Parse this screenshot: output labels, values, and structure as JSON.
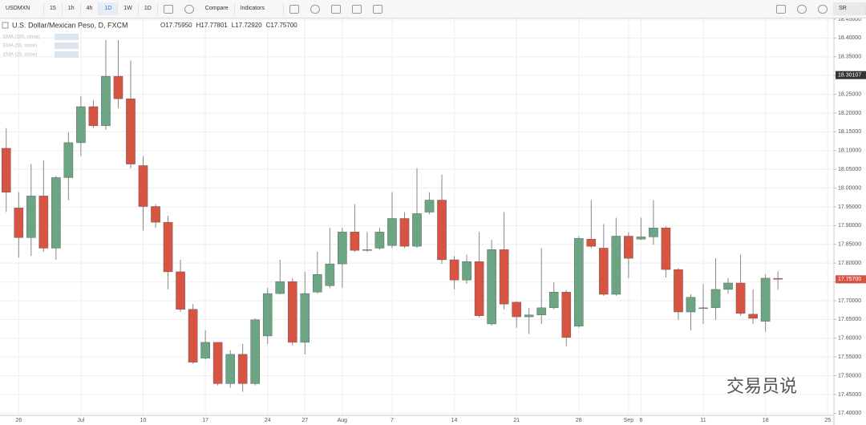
{
  "toolbar": {
    "symbol": "USDMXN",
    "intervals": [
      "15",
      "1h",
      "4h",
      "1D",
      "1W",
      "1D"
    ],
    "active_interval": 3,
    "buttons": [
      "Compare",
      "Indicators"
    ],
    "right": "SR"
  },
  "chart_data": {
    "type": "candlestick",
    "title": "U.S. Dollar/Mexican Peso, D, FXCM",
    "ohlc_legend": [
      "O17.75950",
      "H17.77801",
      "L17.72920",
      "C17.75700"
    ],
    "indicators": [
      "EMA (100, close)",
      "EMA (50, close)",
      "EMA (20, close)"
    ],
    "categories": [
      null,
      "26",
      null,
      null,
      null,
      null,
      "Jul",
      null,
      null,
      null,
      null,
      "10",
      null,
      null,
      null,
      null,
      "17",
      null,
      null,
      null,
      null,
      "24",
      null,
      null,
      "27",
      null,
      null,
      "Aug",
      null,
      null,
      null,
      "7",
      null,
      null,
      null,
      null,
      "14",
      null,
      null,
      null,
      null,
      "21",
      null,
      null,
      null,
      null,
      "28",
      null,
      null,
      null,
      "Sep",
      "6",
      null,
      null,
      null,
      null,
      "11",
      null,
      null,
      null,
      null,
      "18",
      null,
      null,
      null,
      null,
      "25"
    ],
    "open": [
      18.106,
      17.947,
      17.868,
      17.979,
      17.84,
      18.028,
      18.121,
      18.217,
      18.166,
      18.298,
      18.238,
      18.06,
      17.951,
      17.909,
      17.777,
      17.677,
      17.547,
      17.589,
      17.479,
      17.557,
      17.479,
      17.606,
      17.719,
      17.751,
      17.589,
      17.723,
      17.74,
      17.798,
      17.883,
      17.834,
      17.84,
      17.847,
      17.919,
      17.845,
      17.936,
      17.968,
      17.809,
      17.755,
      17.804,
      17.638,
      17.836,
      17.696,
      17.657,
      17.662,
      17.681,
      17.723,
      17.632,
      17.864,
      17.84,
      17.717,
      17.872,
      17.864,
      17.87,
      17.894,
      17.783,
      17.67,
      17.679,
      17.681,
      17.73,
      17.747,
      17.664,
      17.645,
      17.7595,
      null,
      null,
      null,
      null
    ],
    "high": [
      18.16,
      17.989,
      18.064,
      18.074,
      18.032,
      18.149,
      18.245,
      18.234,
      18.394,
      18.394,
      18.34,
      18.085,
      17.957,
      17.926,
      17.809,
      17.691,
      17.621,
      17.589,
      17.568,
      17.585,
      17.653,
      17.734,
      17.809,
      17.76,
      17.777,
      17.83,
      17.894,
      17.894,
      17.957,
      17.883,
      17.894,
      17.989,
      17.936,
      18.053,
      17.989,
      18.036,
      17.819,
      17.823,
      17.883,
      17.862,
      17.936,
      17.698,
      17.681,
      17.84,
      17.749,
      17.728,
      17.872,
      17.968,
      17.904,
      17.921,
      17.883,
      17.921,
      17.968,
      17.898,
      17.787,
      17.717,
      17.745,
      17.813,
      17.76,
      17.823,
      17.73,
      17.77,
      17.77801,
      null,
      null,
      null,
      null
    ],
    "low": [
      17.936,
      17.815,
      17.819,
      17.83,
      17.809,
      17.968,
      18.085,
      18.16,
      18.155,
      18.213,
      18.053,
      17.887,
      17.894,
      17.73,
      17.67,
      17.532,
      17.543,
      17.474,
      17.468,
      17.457,
      17.474,
      17.585,
      17.717,
      17.581,
      17.557,
      17.719,
      17.734,
      17.734,
      17.83,
      17.83,
      17.836,
      17.84,
      17.84,
      17.84,
      17.93,
      17.798,
      17.73,
      17.745,
      17.655,
      17.634,
      17.677,
      17.628,
      17.611,
      17.638,
      17.677,
      17.579,
      17.628,
      17.84,
      17.713,
      17.713,
      17.76,
      17.862,
      17.849,
      17.762,
      17.649,
      17.621,
      17.638,
      17.649,
      17.719,
      17.66,
      17.638,
      17.617,
      17.7292,
      null,
      null,
      null,
      null
    ],
    "close": [
      17.989,
      17.868,
      17.979,
      17.84,
      18.028,
      18.121,
      18.217,
      18.166,
      18.298,
      18.238,
      18.064,
      17.951,
      17.909,
      17.777,
      17.677,
      17.536,
      17.589,
      17.479,
      17.557,
      17.479,
      17.649,
      17.719,
      17.751,
      17.589,
      17.719,
      17.77,
      17.798,
      17.883,
      17.834,
      17.836,
      17.883,
      17.919,
      17.845,
      17.932,
      17.968,
      17.809,
      17.755,
      17.804,
      17.66,
      17.836,
      17.691,
      17.657,
      17.662,
      17.681,
      17.723,
      17.602,
      17.866,
      17.845,
      17.717,
      17.872,
      17.813,
      17.87,
      17.894,
      17.783,
      17.67,
      17.709,
      17.681,
      17.73,
      17.747,
      17.666,
      17.653,
      17.76,
      17.757,
      null,
      null,
      null,
      null
    ],
    "up_color": "#6ba583",
    "down_color": "#d75442",
    "ylim": [
      17.388,
      18.452
    ],
    "yticks": [
      {
        "value": 17.4,
        "label": "17.40000"
      },
      {
        "value": 17.45,
        "label": "17.45000"
      },
      {
        "value": 17.5,
        "label": "17.50000"
      },
      {
        "value": 17.55,
        "label": "17.55000"
      },
      {
        "value": 17.6,
        "label": "17.60000"
      },
      {
        "value": 17.65,
        "label": "17.65000"
      },
      {
        "value": 17.7,
        "label": "17.70000"
      },
      {
        "value": 17.75,
        "label": "17.75000"
      },
      {
        "value": 17.8,
        "label": "17.80000"
      },
      {
        "value": 17.85,
        "label": "17.85000"
      },
      {
        "value": 17.9,
        "label": "17.90000"
      },
      {
        "value": 17.95,
        "label": "17.95000"
      },
      {
        "value": 18.0,
        "label": "18.00000"
      },
      {
        "value": 18.05,
        "label": "18.05000"
      },
      {
        "value": 18.1,
        "label": "18.10000"
      },
      {
        "value": 18.15,
        "label": "18.15000"
      },
      {
        "value": 18.2,
        "label": "18.20000"
      },
      {
        "value": 18.25,
        "label": "18.25000"
      },
      {
        "value": 18.3,
        "label": "18.30000"
      },
      {
        "value": 18.35,
        "label": "18.35000"
      },
      {
        "value": 18.4,
        "label": "18.40000"
      },
      {
        "value": 18.45,
        "label": "18.45000"
      }
    ],
    "price_labels": [
      {
        "value": 18.30107,
        "label": "18.30107",
        "color": "#333333"
      },
      {
        "value": 17.757,
        "label": "17.75700",
        "color": "#d75442"
      }
    ],
    "grid": true
  },
  "watermark": "交易员说"
}
